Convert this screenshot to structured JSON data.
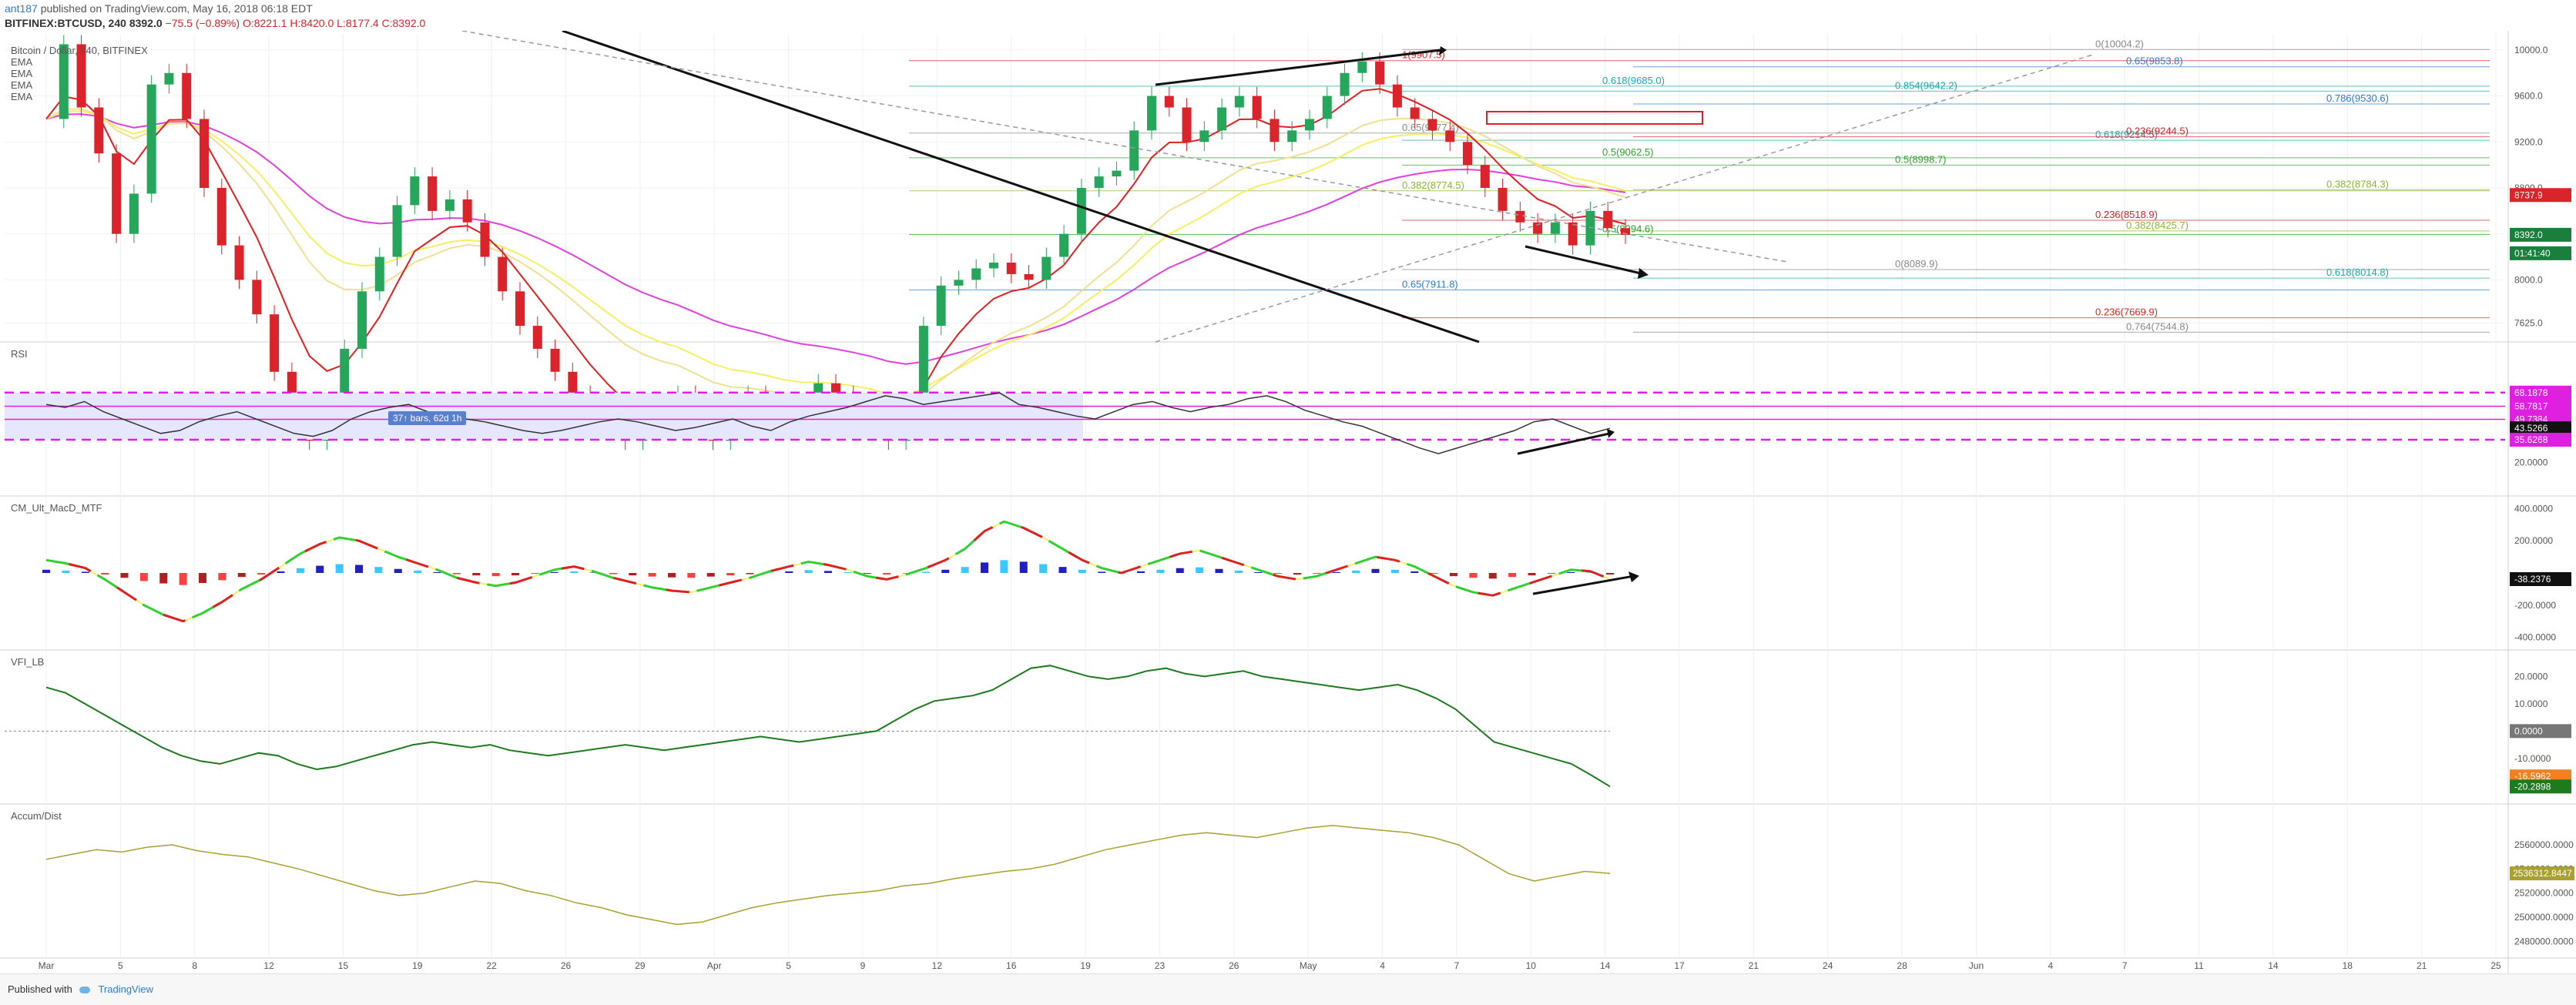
{
  "header": {
    "user": "ant187",
    "published": "published on TradingView.com, May 16, 2018 06:18 EDT",
    "symbol": "BITFINEX:BTCUSD, 240",
    "price": "8392.0",
    "change": "−75.5 (−0.89%)",
    "ohlc": "O:8221.1 H:8420.0 L:8177.4 C:8392.0"
  },
  "legend": {
    "title": "Bitcoin / Dollar, 240, BITFINEX",
    "ema_labels": [
      "EMA",
      "EMA",
      "EMA",
      "EMA"
    ]
  },
  "pane_titles": {
    "rsi": "RSI",
    "macd": "CM_Ult_MacD_MTF",
    "vfi": "VFI_LB",
    "accum": "Accum/Dist"
  },
  "bars_tag": "37↑ bars, 62d 1h",
  "footer": {
    "text": "Published with",
    "brand": "TradingView"
  },
  "colors": {
    "price_axis_last": "#1a7f3c",
    "fib_blue": "#2a7bd6",
    "fib_green": "#30a030",
    "fib_red": "#d9242b",
    "rsi_band": "#e6e6ff",
    "rsi_dash": "#e020e0"
  },
  "chart_data": [
    {
      "type": "line",
      "pane": "price",
      "title": "Bitcoin / Dollar, 240, BITFINEX",
      "ylim": [
        7500,
        10100
      ],
      "x_ticks": [
        "Mar",
        "5",
        "8",
        "12",
        "15",
        "19",
        "22",
        "26",
        "29",
        "Apr",
        "5",
        "9",
        "12",
        "16",
        "19",
        "23",
        "26",
        "May",
        "4",
        "7",
        "10",
        "14",
        "17",
        "21",
        "24",
        "28",
        "Jun",
        "4",
        "7",
        "11",
        "14",
        "18",
        "21",
        "25"
      ],
      "y_ticks": [
        "10000.0",
        "9600.0",
        "9200.0",
        "8800.0",
        "8400.0",
        "8000.0",
        "7625.0"
      ],
      "axis_tags": [
        "8392.0",
        "8737.9",
        "01:41:40"
      ],
      "fib_labels": [
        {
          "text": "1(9907.5)",
          "value": 9907.5,
          "color": "#d9242b"
        },
        {
          "text": "0(10004.2)",
          "value": 10004.2,
          "color": "#888888"
        },
        {
          "text": "0.65(9853.8)",
          "value": 9853.8,
          "color": "#2a7bd6"
        },
        {
          "text": "0.618(9685.0)",
          "value": 9685.0,
          "color": "#1fa7a7"
        },
        {
          "text": "0.854(9642.2)",
          "value": 9642.2,
          "color": "#1fa7a7"
        },
        {
          "text": "0.786(9530.6)",
          "value": 9530.6,
          "color": "#2a7bd6"
        },
        {
          "text": "0.65(9277.4)",
          "value": 9277.4,
          "color": "#888888"
        },
        {
          "text": "0.618(9214.5)",
          "value": 9214.5,
          "color": "#1fa7a7"
        },
        {
          "text": "0.236(9244.5)",
          "value": 9244.5,
          "color": "#d9242b"
        },
        {
          "text": "0.5(9062.5)",
          "value": 9062.5,
          "color": "#30a030"
        },
        {
          "text": "0.5(8998.7)",
          "value": 8998.7,
          "color": "#30a030"
        },
        {
          "text": "0.382(8784.3)",
          "value": 8784.3,
          "color": "#8ab830"
        },
        {
          "text": "0.382(8774.5)",
          "value": 8774.5,
          "color": "#8ab830"
        },
        {
          "text": "0.236(8518.9)",
          "value": 8518.9,
          "color": "#d9242b"
        },
        {
          "text": "0.382(8425.7)",
          "value": 8425.7,
          "color": "#8ab830"
        },
        {
          "text": "0.5(8394.6)",
          "value": 8394.6,
          "color": "#30a030"
        },
        {
          "text": "0(8089.9)",
          "value": 8089.9,
          "color": "#888888"
        },
        {
          "text": "0.618(8014.8)",
          "value": 8014.8,
          "color": "#1fa7a7"
        },
        {
          "text": "0.65(7911.8)",
          "value": 7911.8,
          "color": "#2a7bd6"
        },
        {
          "text": "0.236(7669.9)",
          "value": 7669.9,
          "color": "#d9242b"
        },
        {
          "text": "0.764(7544.8)",
          "value": 7544.8,
          "color": "#888888"
        }
      ],
      "close_series": [
        9400,
        10050,
        9500,
        9100,
        8400,
        8750,
        9700,
        9800,
        9400,
        8800,
        8300,
        8000,
        7700,
        7200,
        6800,
        6600,
        6900,
        7400,
        7900,
        8200,
        8650,
        8900,
        8600,
        8700,
        8500,
        8200,
        7900,
        7600,
        7400,
        7200,
        7000,
        6800,
        6700,
        6600,
        6800,
        6900,
        7000,
        6700,
        6600,
        6800,
        7000,
        6900,
        6800,
        6900,
        7100,
        7000,
        6900,
        6800,
        6600,
        6900,
        7600,
        7950,
        8000,
        8100,
        8150,
        8050,
        8000,
        8200,
        8400,
        8800,
        8900,
        8950,
        9300,
        9600,
        9500,
        9200,
        9300,
        9500,
        9600,
        9400,
        9200,
        9300,
        9400,
        9600,
        9800,
        9900,
        9700,
        9500,
        9400,
        9300,
        9200,
        9000,
        8800,
        8600,
        8500,
        8400,
        8500,
        8300,
        8600,
        8450,
        8392
      ]
    },
    {
      "type": "line",
      "pane": "rsi",
      "title": "RSI",
      "ylim": [
        0,
        100
      ],
      "y_ticks": [
        "20.0000"
      ],
      "axis_tags": [
        "68.1878",
        "58.7817",
        "49.7384",
        "43.5266",
        "35.6268"
      ],
      "levels": [
        68.1878,
        58.7817,
        49.7384,
        35.6268
      ],
      "values": [
        60,
        58,
        62,
        55,
        50,
        45,
        40,
        42,
        48,
        52,
        55,
        50,
        45,
        40,
        38,
        42,
        50,
        55,
        58,
        60,
        55,
        52,
        50,
        48,
        45,
        42,
        40,
        42,
        45,
        48,
        50,
        48,
        45,
        42,
        44,
        47,
        50,
        45,
        42,
        48,
        52,
        55,
        58,
        62,
        66,
        64,
        60,
        62,
        64,
        66,
        68,
        60,
        58,
        55,
        52,
        50,
        55,
        60,
        62,
        58,
        55,
        58,
        60,
        64,
        66,
        62,
        56,
        52,
        48,
        45,
        40,
        35,
        30,
        26,
        30,
        34,
        38,
        42,
        48,
        50,
        45,
        40,
        43.5
      ]
    },
    {
      "type": "bar",
      "pane": "macd",
      "title": "CM_Ult_MacD_MTF",
      "ylim": [
        -450,
        450
      ],
      "y_ticks": [
        "400.0000",
        "200.0000",
        "-200.0000",
        "-400.0000"
      ],
      "axis_tags": [
        "-38.2376"
      ],
      "values": [
        80,
        60,
        30,
        -40,
        -120,
        -200,
        -260,
        -300,
        -250,
        -180,
        -100,
        -40,
        40,
        120,
        180,
        220,
        200,
        150,
        100,
        60,
        20,
        -30,
        -60,
        -80,
        -60,
        -20,
        20,
        40,
        10,
        -30,
        -60,
        -90,
        -110,
        -120,
        -90,
        -60,
        -30,
        10,
        40,
        70,
        50,
        20,
        -20,
        -40,
        -10,
        30,
        80,
        150,
        260,
        320,
        280,
        220,
        150,
        80,
        30,
        0,
        40,
        80,
        120,
        140,
        100,
        60,
        20,
        -20,
        -40,
        -20,
        20,
        60,
        100,
        80,
        40,
        -20,
        -80,
        -120,
        -140,
        -100,
        -60,
        -20,
        20,
        10,
        -38.2
      ]
    },
    {
      "type": "line",
      "pane": "vfi",
      "title": "VFI_LB",
      "ylim": [
        -25,
        28
      ],
      "y_ticks": [
        "20.0000",
        "10.0000",
        "0.0000",
        "-10.0000"
      ],
      "axis_tags": [
        "0.0000",
        "-16.5962",
        "-20.2898"
      ],
      "values": [
        16,
        14,
        10,
        6,
        2,
        -2,
        -6,
        -9,
        -11,
        -12,
        -10,
        -8,
        -9,
        -12,
        -14,
        -13,
        -11,
        -9,
        -7,
        -5,
        -4,
        -5,
        -6,
        -5,
        -7,
        -8,
        -9,
        -8,
        -7,
        -6,
        -5,
        -6,
        -7,
        -6,
        -5,
        -4,
        -3,
        -2,
        -3,
        -4,
        -3,
        -2,
        -1,
        0,
        4,
        8,
        11,
        12,
        13,
        15,
        19,
        23,
        24,
        22,
        20,
        19,
        20,
        22,
        23,
        21,
        20,
        21,
        22,
        20,
        19,
        18,
        17,
        16,
        15,
        16,
        17,
        15,
        12,
        8,
        2,
        -4,
        -6,
        -8,
        -10,
        -12,
        -16,
        -20.3
      ]
    },
    {
      "type": "line",
      "pane": "accum",
      "title": "Accum/Dist",
      "ylim": [
        2470000,
        2590000
      ],
      "y_ticks": [
        "2560000.0000",
        "2540000.0000",
        "2520000.0000",
        "2500000.0000",
        "2480000.0000"
      ],
      "axis_tags": [
        "2536312.8447"
      ],
      "values": [
        2548000,
        2552000,
        2556000,
        2554000,
        2558000,
        2560000,
        2555000,
        2552000,
        2550000,
        2545000,
        2540000,
        2534000,
        2528000,
        2522000,
        2518000,
        2520000,
        2525000,
        2530000,
        2528000,
        2522000,
        2518000,
        2512000,
        2508000,
        2502000,
        2498000,
        2494000,
        2496000,
        2502000,
        2508000,
        2512000,
        2515000,
        2518000,
        2520000,
        2522000,
        2526000,
        2528000,
        2532000,
        2535000,
        2538000,
        2540000,
        2544000,
        2550000,
        2556000,
        2560000,
        2564000,
        2568000,
        2570000,
        2568000,
        2566000,
        2570000,
        2574000,
        2576000,
        2574000,
        2572000,
        2570000,
        2566000,
        2560000,
        2548000,
        2536000,
        2530000,
        2534000,
        2538000,
        2536312
      ]
    }
  ]
}
